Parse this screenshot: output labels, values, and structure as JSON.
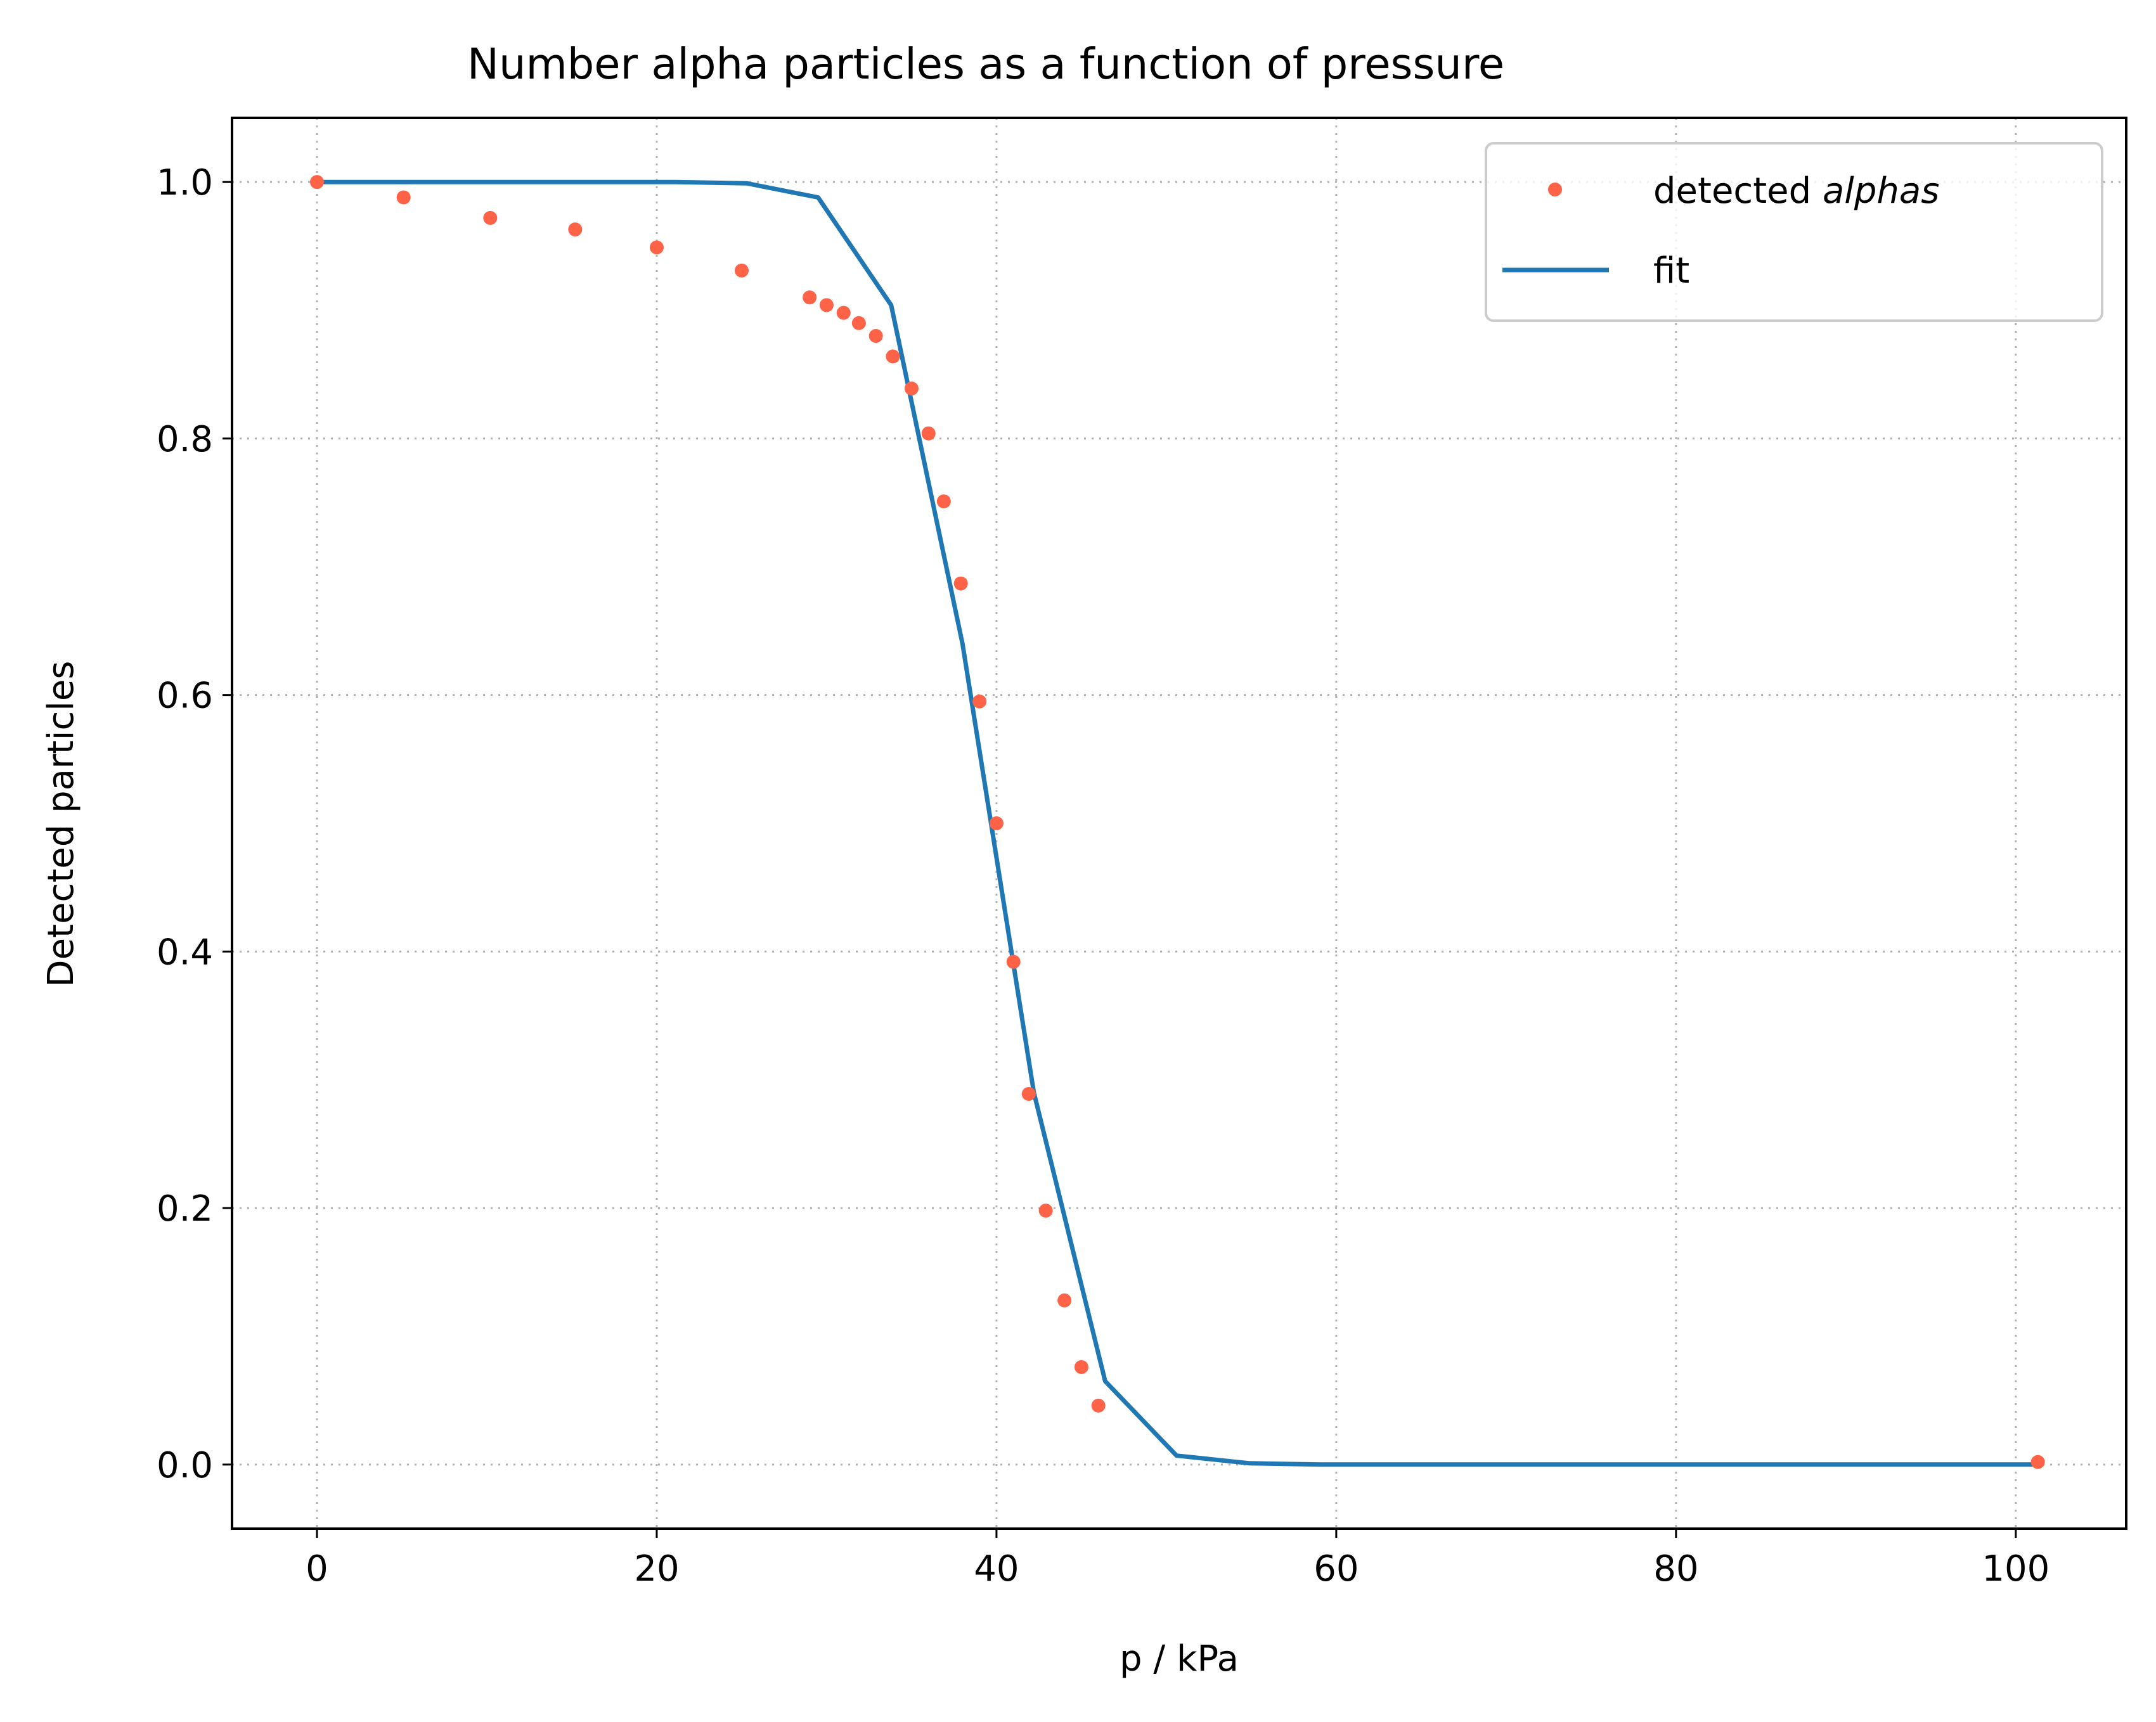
{
  "chart_data": {
    "type": "scatter",
    "title": "Number alpha particles as a function of pressure",
    "xlabel": "p / kPa",
    "ylabel": "Detected particles",
    "xlim": [
      -5,
      106.5
    ],
    "ylim": [
      -0.05,
      1.05
    ],
    "x_ticks": [
      0,
      20,
      40,
      60,
      80,
      100
    ],
    "x_tick_labels": [
      "0",
      "20",
      "40",
      "60",
      "80",
      "100"
    ],
    "y_ticks": [
      0.0,
      0.2,
      0.4,
      0.6,
      0.8,
      1.0
    ],
    "y_tick_labels": [
      "0.0",
      "0.2",
      "0.4",
      "0.6",
      "0.8",
      "1.0"
    ],
    "grid": true,
    "legend_position": "top-right",
    "series": [
      {
        "name_prefix": "detected ",
        "name_italic": "alphas",
        "kind": "points",
        "color": "#ff6347",
        "x": [
          0,
          5.1,
          10.2,
          15.2,
          20.0,
          25.0,
          29.0,
          30.0,
          31.0,
          31.9,
          32.9,
          33.9,
          35.0,
          36.0,
          36.9,
          37.9,
          39.0,
          40.0,
          41.0,
          41.9,
          42.9,
          44.0,
          45.0,
          46.0,
          101.3
        ],
        "y": [
          1.0,
          0.988,
          0.972,
          0.963,
          0.949,
          0.931,
          0.91,
          0.904,
          0.898,
          0.89,
          0.88,
          0.864,
          0.839,
          0.804,
          0.751,
          0.687,
          0.595,
          0.5,
          0.392,
          0.289,
          0.198,
          0.128,
          0.076,
          0.046,
          0.002
        ]
      },
      {
        "name": "fit",
        "kind": "line",
        "color": "#1f77b4",
        "x": [
          0,
          4.2,
          8.4,
          12.7,
          16.9,
          21.1,
          25.3,
          29.5,
          33.8,
          38.0,
          42.2,
          46.4,
          50.6,
          54.9,
          59.1,
          63.3,
          67.5,
          71.7,
          75.9,
          80.2,
          84.4,
          88.6,
          92.8,
          97.0,
          101.3
        ],
        "y": [
          1.0,
          1.0,
          1.0,
          1.0,
          1.0,
          1.0,
          0.999,
          0.988,
          0.904,
          0.64,
          0.29,
          0.065,
          0.007,
          0.001,
          0.0,
          0.0,
          0.0,
          0.0,
          0.0,
          0.0,
          0.0,
          0.0,
          0.0,
          0.0,
          0.0
        ]
      }
    ]
  },
  "colors": {
    "points": "#ff6347",
    "line": "#1f77b4",
    "grid": "#b0b0b0",
    "axes": "#000000"
  }
}
